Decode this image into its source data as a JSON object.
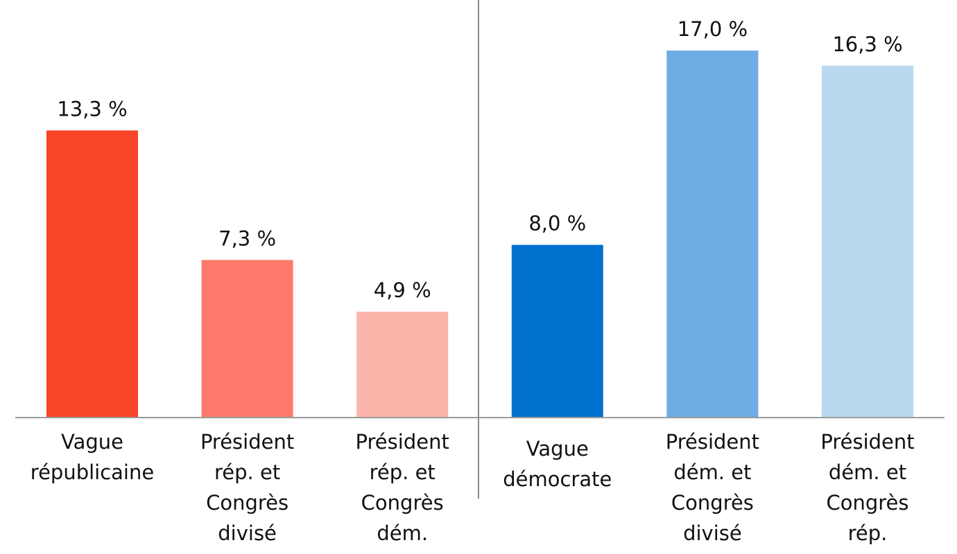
{
  "chart_data": {
    "type": "bar",
    "title": "",
    "xlabel": "",
    "ylabel": "",
    "ylim": [
      0,
      17.0
    ],
    "grid": false,
    "legend": "none",
    "categories": [
      [
        "Vague",
        "républicaine"
      ],
      [
        "Président",
        "rép. et",
        "Congrès",
        "divisé"
      ],
      [
        "Président",
        "rép. et",
        "Congrès",
        "dém."
      ],
      [
        "Vague",
        "démocrate"
      ],
      [
        "Président",
        "dém. et",
        "Congrès",
        "divisé"
      ],
      [
        "Président",
        "dém. et",
        "Congrès",
        "rép."
      ]
    ],
    "values": [
      13.3,
      7.3,
      4.9,
      8.0,
      17.0,
      16.3
    ],
    "value_labels": [
      "13,3 %",
      "7,3 %",
      "4,9 %",
      "8,0 %",
      "17,0 %",
      "16,3 %"
    ],
    "colors": [
      "#f84428",
      "#fe7a6a",
      "#fbb4a9",
      "#0071cf",
      "#6facE3",
      "#b8d8ed"
    ]
  }
}
